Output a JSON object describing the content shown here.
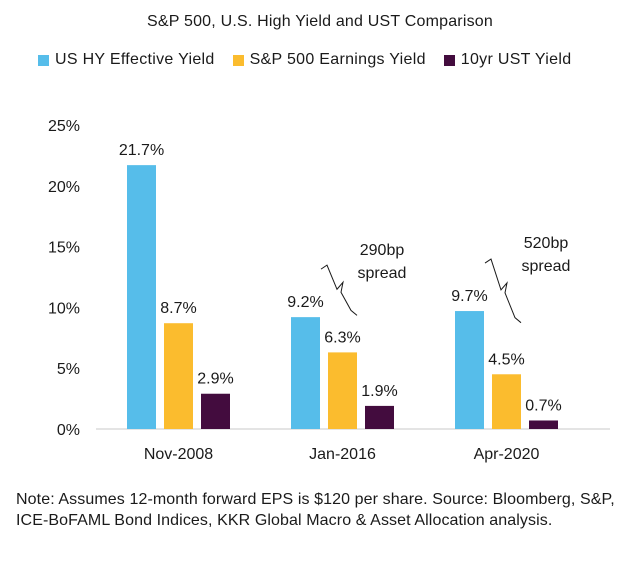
{
  "chart_data": {
    "type": "bar",
    "title": "S&P 500, U.S. High Yield and UST Comparison",
    "categories": [
      "Nov-2008",
      "Jan-2016",
      "Apr-2020"
    ],
    "series": [
      {
        "name": "US HY Effective Yield",
        "color": "#56bdea",
        "values": [
          21.7,
          9.2,
          9.7
        ],
        "labels": [
          "21.7%",
          "9.2%",
          "9.7%"
        ]
      },
      {
        "name": "S&P 500 Earnings Yield",
        "color": "#fbbc2e",
        "values": [
          8.7,
          6.3,
          4.5
        ],
        "labels": [
          "8.7%",
          "6.3%",
          "4.5%"
        ]
      },
      {
        "name": "10yr UST Yield",
        "color": "#430c3e",
        "values": [
          2.9,
          1.9,
          0.7
        ],
        "labels": [
          "2.9%",
          "1.9%",
          "0.7%"
        ]
      }
    ],
    "ylim": [
      0,
      25
    ],
    "yticks": [
      0,
      5,
      10,
      15,
      20,
      25
    ],
    "ytick_labels": [
      "0%",
      "5%",
      "10%",
      "15%",
      "20%",
      "25%"
    ],
    "xlabel": "",
    "ylabel": "",
    "legend_position": "top",
    "grid": false,
    "annotations": [
      {
        "category": "Jan-2016",
        "line1": "290bp",
        "line2": "spread"
      },
      {
        "category": "Apr-2020",
        "line1": "520bp",
        "line2": "spread"
      }
    ]
  },
  "note": "Note: Assumes 12-month forward EPS is $120 per share. Source: Bloomberg, S&P, ICE-BoFAML Bond Indices, KKR Global Macro & Asset Allocation analysis."
}
